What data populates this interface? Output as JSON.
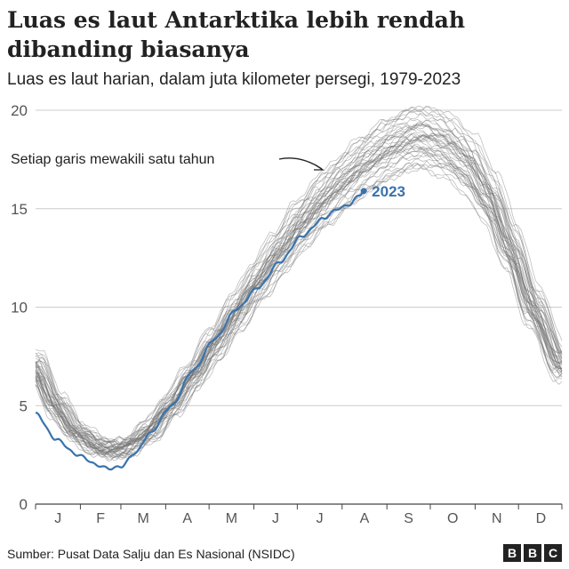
{
  "chart_data": {
    "type": "line",
    "title": "Luas es laut Antarktika lebih rendah dibanding biasanya",
    "subtitle": "Luas es laut harian, dalam juta kilometer persegi, 1979-2023",
    "xlabel": "",
    "ylabel": "",
    "ylim": [
      0,
      20
    ],
    "yticks": [
      0,
      5,
      10,
      15,
      20
    ],
    "x_tick_labels": [
      "J",
      "F",
      "M",
      "A",
      "M",
      "J",
      "J",
      "A",
      "S",
      "O",
      "N",
      "D"
    ],
    "x_axis": "day of year",
    "grid": true,
    "annotation": "Setiap garis mewakili satu tahun",
    "highlight_label": "2023",
    "highlight_color": "#3a73ac",
    "background_color": "#707070",
    "background_series_range": "1979-2022",
    "background_typical": [
      {
        "day": 1,
        "value": 7.0
      },
      {
        "day": 15,
        "value": 5.0
      },
      {
        "day": 30,
        "value": 3.6
      },
      {
        "day": 45,
        "value": 2.9
      },
      {
        "day": 55,
        "value": 2.75
      },
      {
        "day": 65,
        "value": 2.9
      },
      {
        "day": 80,
        "value": 3.7
      },
      {
        "day": 95,
        "value": 5.0
      },
      {
        "day": 110,
        "value": 6.5
      },
      {
        "day": 125,
        "value": 8.1
      },
      {
        "day": 140,
        "value": 9.7
      },
      {
        "day": 155,
        "value": 11.3
      },
      {
        "day": 170,
        "value": 12.8
      },
      {
        "day": 185,
        "value": 14.2
      },
      {
        "day": 200,
        "value": 15.4
      },
      {
        "day": 215,
        "value": 16.4
      },
      {
        "day": 230,
        "value": 17.3
      },
      {
        "day": 245,
        "value": 18.0
      },
      {
        "day": 258,
        "value": 18.5
      },
      {
        "day": 270,
        "value": 18.6
      },
      {
        "day": 285,
        "value": 18.2
      },
      {
        "day": 300,
        "value": 17.3
      },
      {
        "day": 315,
        "value": 15.6
      },
      {
        "day": 330,
        "value": 13.0
      },
      {
        "day": 345,
        "value": 10.0
      },
      {
        "day": 365,
        "value": 7.0
      }
    ],
    "series_2023": [
      {
        "day": 1,
        "value": 4.6
      },
      {
        "day": 15,
        "value": 3.3
      },
      {
        "day": 30,
        "value": 2.5
      },
      {
        "day": 45,
        "value": 1.95
      },
      {
        "day": 52,
        "value": 1.8
      },
      {
        "day": 60,
        "value": 1.9
      },
      {
        "day": 70,
        "value": 2.6
      },
      {
        "day": 80,
        "value": 3.6
      },
      {
        "day": 95,
        "value": 5.0
      },
      {
        "day": 110,
        "value": 6.8
      },
      {
        "day": 125,
        "value": 8.4
      },
      {
        "day": 140,
        "value": 9.9
      },
      {
        "day": 155,
        "value": 11.0
      },
      {
        "day": 170,
        "value": 12.3
      },
      {
        "day": 185,
        "value": 13.6
      },
      {
        "day": 200,
        "value": 14.5
      },
      {
        "day": 210,
        "value": 15.0
      },
      {
        "day": 218,
        "value": 15.2
      },
      {
        "day": 225,
        "value": 15.7
      },
      {
        "day": 228,
        "value": 15.9
      }
    ]
  },
  "footer": {
    "source": "Sumber: Pusat Data Salju dan Es Nasional (NSIDC)",
    "logo_letters": [
      "B",
      "B",
      "C"
    ]
  }
}
